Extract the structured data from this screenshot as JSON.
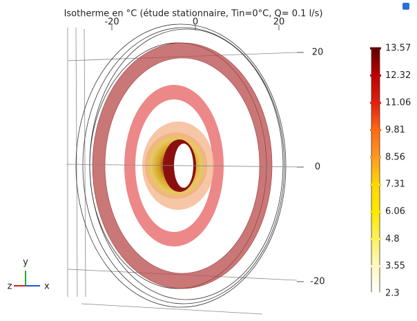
{
  "chart_data": {
    "type": "isosurface",
    "title": "Isotherme en °C (étude stationnaire, Tin=0°C, Q= 0.1 l/s)",
    "xticks": [
      -20,
      0,
      20
    ],
    "xlim": [
      -20,
      20
    ],
    "yticks": [
      -20,
      0,
      20
    ],
    "ylim": [
      -20,
      20
    ],
    "triad": {
      "x": "x",
      "y": "y",
      "z": "z"
    },
    "colorbar": {
      "clim": [
        2.3,
        13.57
      ],
      "ticks": [
        2.3,
        3.55,
        4.8,
        6.06,
        7.31,
        8.56,
        9.81,
        11.06,
        12.32,
        13.57
      ],
      "colors": [
        "#ffffff",
        "#fff8c0",
        "#fff060",
        "#ffe800",
        "#ffd800",
        "#ff9a20",
        "#ff6a10",
        "#e02010",
        "#c00000",
        "#600000"
      ]
    }
  }
}
